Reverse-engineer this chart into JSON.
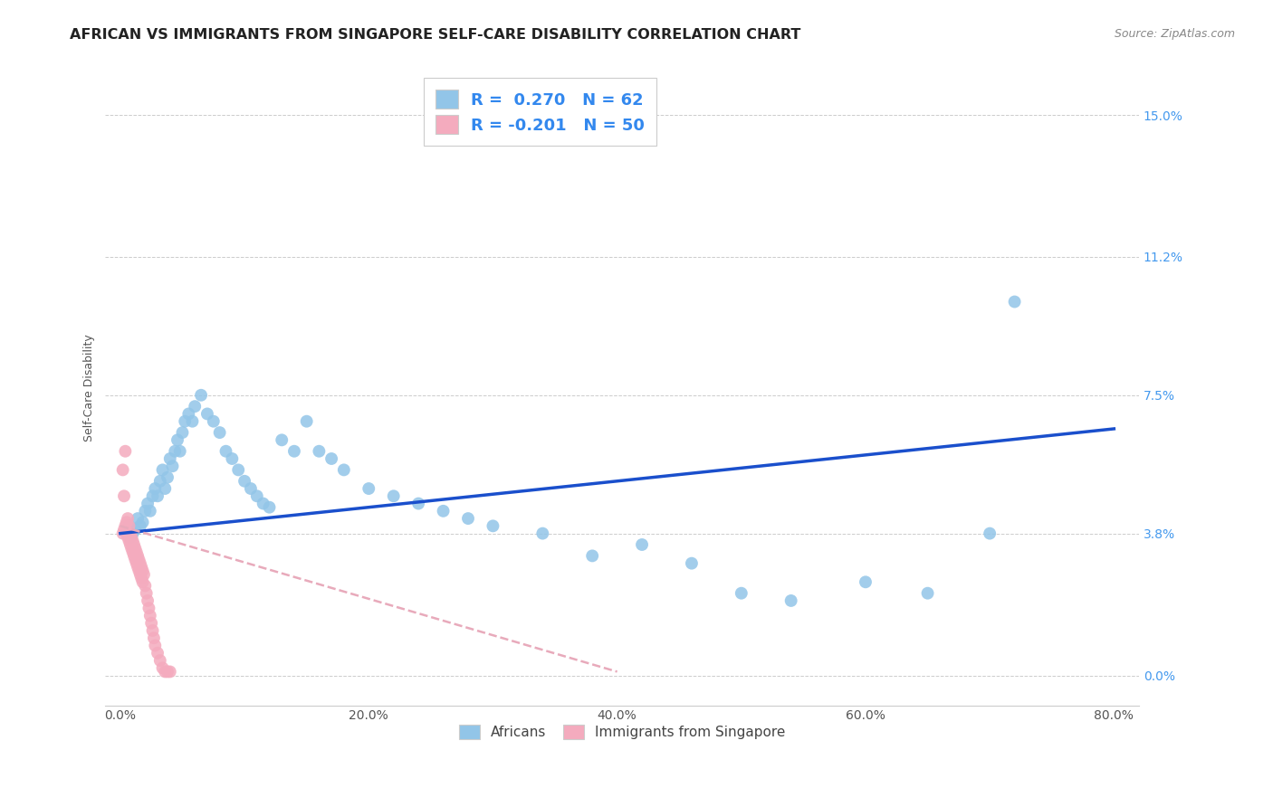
{
  "title": "AFRICAN VS IMMIGRANTS FROM SINGAPORE SELF-CARE DISABILITY CORRELATION CHART",
  "source": "Source: ZipAtlas.com",
  "ylabel": "Self-Care Disability",
  "xlabel_ticks": [
    "0.0%",
    "20.0%",
    "40.0%",
    "60.0%",
    "80.0%"
  ],
  "xlabel_vals": [
    0.0,
    0.2,
    0.4,
    0.6,
    0.8
  ],
  "ylabel_ticks": [
    "0.0%",
    "3.8%",
    "7.5%",
    "11.2%",
    "15.0%"
  ],
  "ylabel_vals": [
    0.0,
    0.038,
    0.075,
    0.112,
    0.15
  ],
  "xlim": [
    -0.012,
    0.82
  ],
  "ylim": [
    -0.008,
    0.162
  ],
  "african_R": 0.27,
  "african_N": 62,
  "singapore_R": -0.201,
  "singapore_N": 50,
  "african_color": "#92C5E8",
  "singapore_color": "#F4ABBE",
  "trendline_african_color": "#1A4FCC",
  "trendline_singapore_color": "#E8AABB",
  "background_color": "#ffffff",
  "grid_color": "#cccccc",
  "legend_label_african": "Africans",
  "legend_label_singapore": "Immigrants from Singapore",
  "title_fontsize": 11.5,
  "axis_label_fontsize": 9,
  "tick_fontsize": 10,
  "african_x": [
    0.005,
    0.007,
    0.008,
    0.01,
    0.012,
    0.014,
    0.016,
    0.018,
    0.02,
    0.022,
    0.024,
    0.026,
    0.028,
    0.03,
    0.032,
    0.034,
    0.036,
    0.038,
    0.04,
    0.042,
    0.044,
    0.046,
    0.048,
    0.05,
    0.052,
    0.055,
    0.058,
    0.06,
    0.065,
    0.07,
    0.075,
    0.08,
    0.085,
    0.09,
    0.095,
    0.1,
    0.105,
    0.11,
    0.115,
    0.12,
    0.13,
    0.14,
    0.15,
    0.16,
    0.17,
    0.18,
    0.2,
    0.22,
    0.24,
    0.26,
    0.28,
    0.3,
    0.34,
    0.38,
    0.42,
    0.46,
    0.5,
    0.54,
    0.6,
    0.65,
    0.7,
    0.72
  ],
  "african_y": [
    0.038,
    0.04,
    0.037,
    0.038,
    0.039,
    0.042,
    0.04,
    0.041,
    0.044,
    0.046,
    0.044,
    0.048,
    0.05,
    0.048,
    0.052,
    0.055,
    0.05,
    0.053,
    0.058,
    0.056,
    0.06,
    0.063,
    0.06,
    0.065,
    0.068,
    0.07,
    0.068,
    0.072,
    0.075,
    0.07,
    0.068,
    0.065,
    0.06,
    0.058,
    0.055,
    0.052,
    0.05,
    0.048,
    0.046,
    0.045,
    0.063,
    0.06,
    0.068,
    0.06,
    0.058,
    0.055,
    0.05,
    0.048,
    0.046,
    0.044,
    0.042,
    0.04,
    0.038,
    0.032,
    0.035,
    0.03,
    0.022,
    0.02,
    0.025,
    0.022,
    0.038,
    0.1
  ],
  "singapore_x": [
    0.002,
    0.003,
    0.004,
    0.005,
    0.005,
    0.006,
    0.006,
    0.007,
    0.007,
    0.008,
    0.008,
    0.009,
    0.009,
    0.01,
    0.01,
    0.011,
    0.011,
    0.012,
    0.012,
    0.013,
    0.013,
    0.014,
    0.014,
    0.015,
    0.015,
    0.016,
    0.016,
    0.017,
    0.017,
    0.018,
    0.018,
    0.019,
    0.02,
    0.021,
    0.022,
    0.023,
    0.024,
    0.025,
    0.026,
    0.027,
    0.028,
    0.03,
    0.032,
    0.034,
    0.036,
    0.038,
    0.04,
    0.002,
    0.003,
    0.004
  ],
  "singapore_y": [
    0.038,
    0.039,
    0.04,
    0.041,
    0.038,
    0.042,
    0.037,
    0.04,
    0.036,
    0.038,
    0.035,
    0.037,
    0.034,
    0.036,
    0.033,
    0.035,
    0.032,
    0.034,
    0.031,
    0.033,
    0.03,
    0.032,
    0.029,
    0.031,
    0.028,
    0.03,
    0.027,
    0.029,
    0.026,
    0.028,
    0.025,
    0.027,
    0.024,
    0.022,
    0.02,
    0.018,
    0.016,
    0.014,
    0.012,
    0.01,
    0.008,
    0.006,
    0.004,
    0.002,
    0.001,
    0.001,
    0.001,
    0.055,
    0.048,
    0.06
  ],
  "african_trendline_x": [
    0.0,
    0.8
  ],
  "african_trendline_y": [
    0.038,
    0.066
  ],
  "singapore_trendline_x": [
    0.0,
    0.4
  ],
  "singapore_trendline_y": [
    0.04,
    0.001
  ]
}
